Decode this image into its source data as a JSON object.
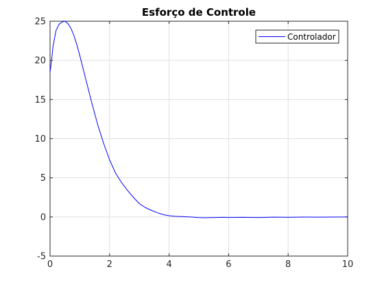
{
  "chart_data": {
    "type": "line",
    "title": "Esforço de Controle",
    "xlabel": "",
    "ylabel": "",
    "xlim": [
      0,
      10
    ],
    "ylim": [
      -5,
      25
    ],
    "xticks": [
      "0",
      "2",
      "4",
      "6",
      "8",
      "10"
    ],
    "yticks": [
      "-5",
      "0",
      "5",
      "10",
      "15",
      "20",
      "25"
    ],
    "grid": true,
    "legend_position": "top-right",
    "series": [
      {
        "name": "Controlador",
        "color": "#0000ff",
        "x": [
          0,
          0.05,
          0.1,
          0.2,
          0.3,
          0.4,
          0.5,
          0.6,
          0.7,
          0.8,
          0.9,
          1.0,
          1.1,
          1.2,
          1.4,
          1.6,
          1.8,
          2.0,
          2.2,
          2.4,
          2.6,
          2.8,
          3.0,
          3.2,
          3.4,
          3.6,
          3.8,
          4.0,
          4.2,
          4.4,
          4.6,
          4.8,
          5.0,
          5.2,
          5.5,
          5.8,
          6.0,
          6.5,
          7.0,
          7.5,
          8.0,
          8.5,
          9.0,
          9.5,
          10.0
        ],
        "y": [
          18.5,
          20.0,
          21.8,
          23.8,
          24.6,
          24.9,
          25.0,
          24.7,
          24.1,
          23.2,
          22.0,
          20.6,
          19.1,
          17.6,
          14.6,
          11.8,
          9.4,
          7.3,
          5.6,
          4.4,
          3.4,
          2.5,
          1.7,
          1.2,
          0.85,
          0.55,
          0.3,
          0.15,
          0.08,
          0.05,
          0.02,
          -0.03,
          -0.08,
          -0.1,
          -0.08,
          -0.05,
          -0.07,
          -0.05,
          -0.08,
          -0.03,
          -0.05,
          -0.02,
          -0.03,
          -0.01,
          0.0
        ]
      }
    ]
  }
}
